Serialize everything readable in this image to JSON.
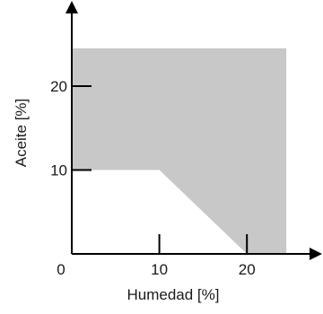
{
  "chart_data": {
    "type": "area",
    "title": "",
    "xlabel": "Humedad [%]",
    "ylabel": "Aceite [%]",
    "xlim": [
      0,
      27
    ],
    "ylim": [
      0,
      27
    ],
    "x_ticks": [
      "0",
      "10",
      "20"
    ],
    "y_ticks": [
      "10",
      "20"
    ],
    "x_tick_values": [
      0,
      10,
      20
    ],
    "y_tick_values": [
      10,
      20
    ],
    "grid": false,
    "legend": "none",
    "region_color": "#c8c8c8",
    "boundary": [
      {
        "x": 0,
        "y": 10
      },
      {
        "x": 10,
        "y": 10
      },
      {
        "x": 20,
        "y": 0
      }
    ],
    "region_extent": {
      "x_max": 24.5,
      "y_max": 24.5
    }
  }
}
